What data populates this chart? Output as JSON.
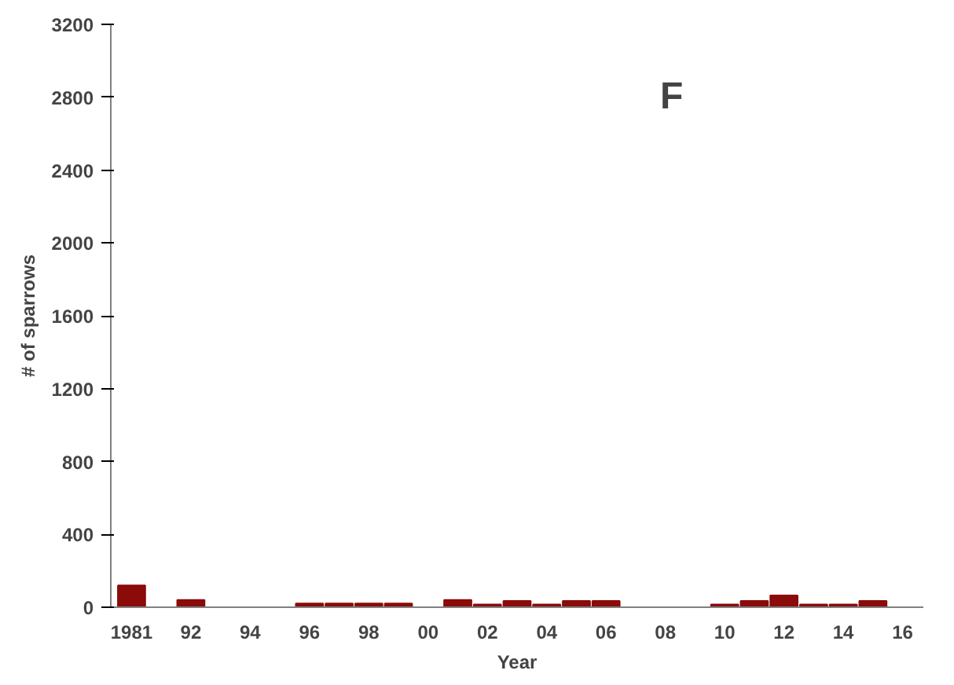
{
  "chart_data": {
    "type": "bar",
    "xlabel": "Year",
    "ylabel": "# of sparrows",
    "annotations": [
      "F"
    ],
    "categories": [
      "1981",
      null,
      "92",
      null,
      "94",
      null,
      "96",
      null,
      "98",
      null,
      "00",
      null,
      "02",
      null,
      "04",
      null,
      "06",
      null,
      "08",
      null,
      "10",
      null,
      "12",
      null,
      "14",
      null,
      "16"
    ],
    "values": [
      120,
      0,
      40,
      0,
      0,
      0,
      20,
      20,
      20,
      20,
      0,
      40,
      15,
      35,
      15,
      35,
      35,
      0,
      0,
      0,
      15,
      35,
      65,
      15,
      15,
      35,
      0
    ],
    "color": "#8b0a0a",
    "ylim": [
      0,
      3200
    ],
    "yticks": [
      0,
      400,
      800,
      1200,
      1600,
      2000,
      2400,
      2800,
      3200
    ],
    "grid": false
  }
}
